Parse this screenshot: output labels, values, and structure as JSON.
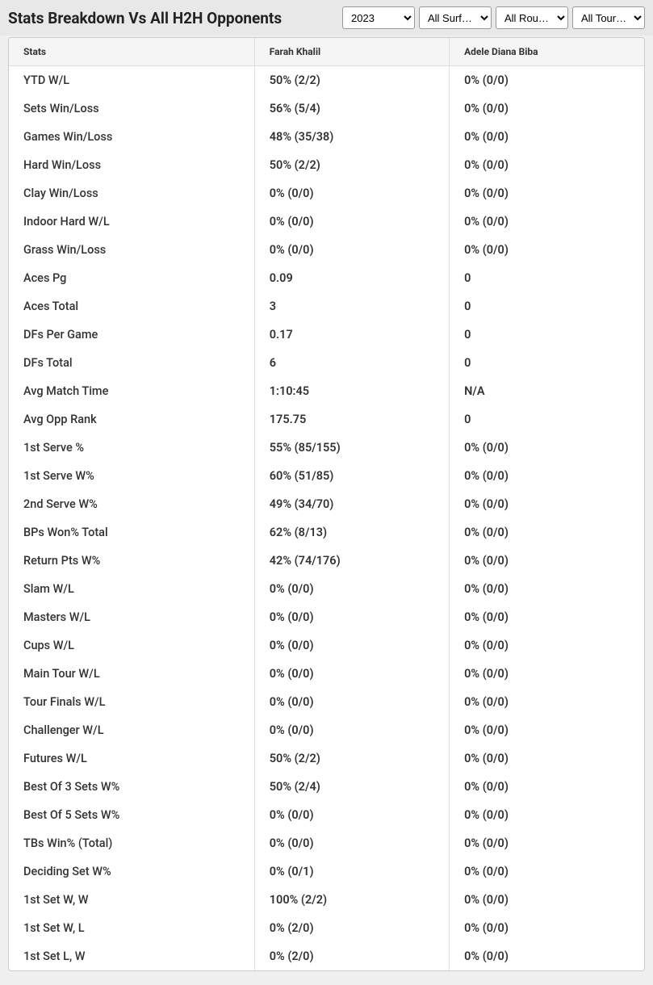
{
  "header": {
    "title": "Stats Breakdown Vs All H2H Opponents"
  },
  "filters": {
    "year": "2023",
    "surface": "All Surf…",
    "round": "All Rou…",
    "tour": "All Tour…"
  },
  "table": {
    "columns": {
      "stats": "Stats",
      "player1": "Farah Khalil",
      "player2": "Adele Diana Biba"
    },
    "rows": [
      {
        "stat": "YTD W/L",
        "p1": "50% (2/2)",
        "p2": "0% (0/0)"
      },
      {
        "stat": "Sets Win/Loss",
        "p1": "56% (5/4)",
        "p2": "0% (0/0)"
      },
      {
        "stat": "Games Win/Loss",
        "p1": "48% (35/38)",
        "p2": "0% (0/0)"
      },
      {
        "stat": "Hard Win/Loss",
        "p1": "50% (2/2)",
        "p2": "0% (0/0)"
      },
      {
        "stat": "Clay Win/Loss",
        "p1": "0% (0/0)",
        "p2": "0% (0/0)"
      },
      {
        "stat": "Indoor Hard W/L",
        "p1": "0% (0/0)",
        "p2": "0% (0/0)"
      },
      {
        "stat": "Grass Win/Loss",
        "p1": "0% (0/0)",
        "p2": "0% (0/0)"
      },
      {
        "stat": "Aces Pg",
        "p1": "0.09",
        "p2": "0"
      },
      {
        "stat": "Aces Total",
        "p1": "3",
        "p2": "0"
      },
      {
        "stat": "DFs Per Game",
        "p1": "0.17",
        "p2": "0"
      },
      {
        "stat": "DFs Total",
        "p1": "6",
        "p2": "0"
      },
      {
        "stat": "Avg Match Time",
        "p1": "1:10:45",
        "p2": "N/A"
      },
      {
        "stat": "Avg Opp Rank",
        "p1": "175.75",
        "p2": "0"
      },
      {
        "stat": "1st Serve %",
        "p1": "55% (85/155)",
        "p2": "0% (0/0)"
      },
      {
        "stat": "1st Serve W%",
        "p1": "60% (51/85)",
        "p2": "0% (0/0)"
      },
      {
        "stat": "2nd Serve W%",
        "p1": "49% (34/70)",
        "p2": "0% (0/0)"
      },
      {
        "stat": "BPs Won% Total",
        "p1": "62% (8/13)",
        "p2": "0% (0/0)"
      },
      {
        "stat": "Return Pts W%",
        "p1": "42% (74/176)",
        "p2": "0% (0/0)"
      },
      {
        "stat": "Slam W/L",
        "p1": "0% (0/0)",
        "p2": "0% (0/0)"
      },
      {
        "stat": "Masters W/L",
        "p1": "0% (0/0)",
        "p2": "0% (0/0)"
      },
      {
        "stat": "Cups W/L",
        "p1": "0% (0/0)",
        "p2": "0% (0/0)"
      },
      {
        "stat": "Main Tour W/L",
        "p1": "0% (0/0)",
        "p2": "0% (0/0)"
      },
      {
        "stat": "Tour Finals W/L",
        "p1": "0% (0/0)",
        "p2": "0% (0/0)"
      },
      {
        "stat": "Challenger W/L",
        "p1": "0% (0/0)",
        "p2": "0% (0/0)"
      },
      {
        "stat": "Futures W/L",
        "p1": "50% (2/2)",
        "p2": "0% (0/0)"
      },
      {
        "stat": "Best Of 3 Sets W%",
        "p1": "50% (2/4)",
        "p2": "0% (0/0)"
      },
      {
        "stat": "Best Of 5 Sets W%",
        "p1": "0% (0/0)",
        "p2": "0% (0/0)"
      },
      {
        "stat": "TBs Win% (Total)",
        "p1": "0% (0/0)",
        "p2": "0% (0/0)"
      },
      {
        "stat": "Deciding Set W%",
        "p1": "0% (0/1)",
        "p2": "0% (0/0)"
      },
      {
        "stat": "1st Set W, W",
        "p1": "100% (2/2)",
        "p2": "0% (0/0)"
      },
      {
        "stat": "1st Set W, L",
        "p1": "0% (2/0)",
        "p2": "0% (0/0)"
      },
      {
        "stat": "1st Set L, W",
        "p1": "0% (2/0)",
        "p2": "0% (0/0)"
      }
    ]
  }
}
